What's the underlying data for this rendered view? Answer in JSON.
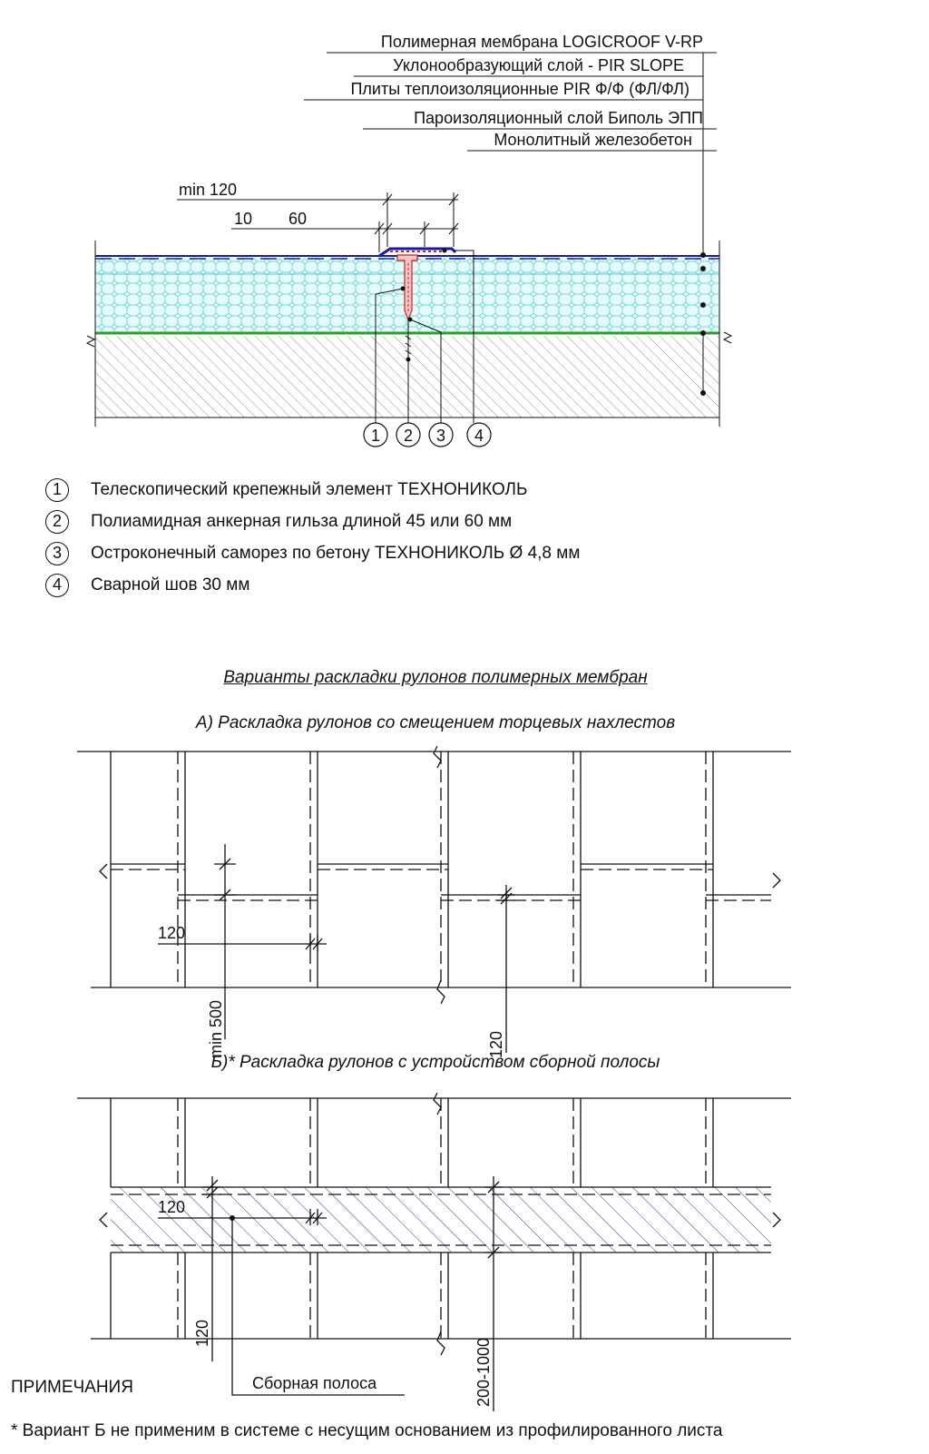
{
  "section": {
    "layer_labels": [
      "Полимерная мембрана LOGICROOF V-RP",
      "Уклонообразующий слой - PIR SLOPE",
      "Плиты теплоизоляционные PIR Ф/Ф (ФЛ/ФЛ)",
      "Пароизоляционный слой Биполь ЭПП",
      "Монолитный железобетон"
    ],
    "dim_overall": "min 120",
    "dim_a": "10",
    "dim_b": "60",
    "callouts": [
      "1",
      "2",
      "3",
      "4"
    ]
  },
  "legend": [
    {
      "num": "1",
      "text": "Телескопический крепежный элемент ТЕХНОНИКОЛЬ"
    },
    {
      "num": "2",
      "text": "Полиамидная анкерная гильза длиной 45 или 60 мм"
    },
    {
      "num": "3",
      "text": "Остроконечный саморез по бетону ТЕХНОНИКОЛЬ Ø 4,8 мм"
    },
    {
      "num": "4",
      "text": "Сварной шов 30 мм"
    }
  ],
  "layouts": {
    "title": "Варианты раскладки рулонов полимерных мембран",
    "variant_a": {
      "title": "А) Раскладка рулонов со смещением торцевых нахлестов",
      "dim_overlap": "120",
      "dim_offset": "min 500",
      "dim_overlap_2": "120"
    },
    "variant_b": {
      "title": "Б)* Раскладка рулонов с устройством сборной полосы",
      "dim_overlap": "120",
      "dim_overlap_v": "120",
      "dim_strip": "200-1000",
      "strip_label": "Сборная полоса"
    }
  },
  "notes": {
    "title": "ПРИМЕЧАНИЯ",
    "items": [
      "*  Вариант Б не применим в системе с несущим основанием из профилированного листа"
    ]
  },
  "colors": {
    "membrane": "#1a1aa8",
    "insulation_fill": "#e6fbfb",
    "insulation_hex": "#55cccc",
    "vapor_barrier": "#2aa02a",
    "fastener": "#cc2222",
    "strip_hatch": "#3333aa"
  }
}
